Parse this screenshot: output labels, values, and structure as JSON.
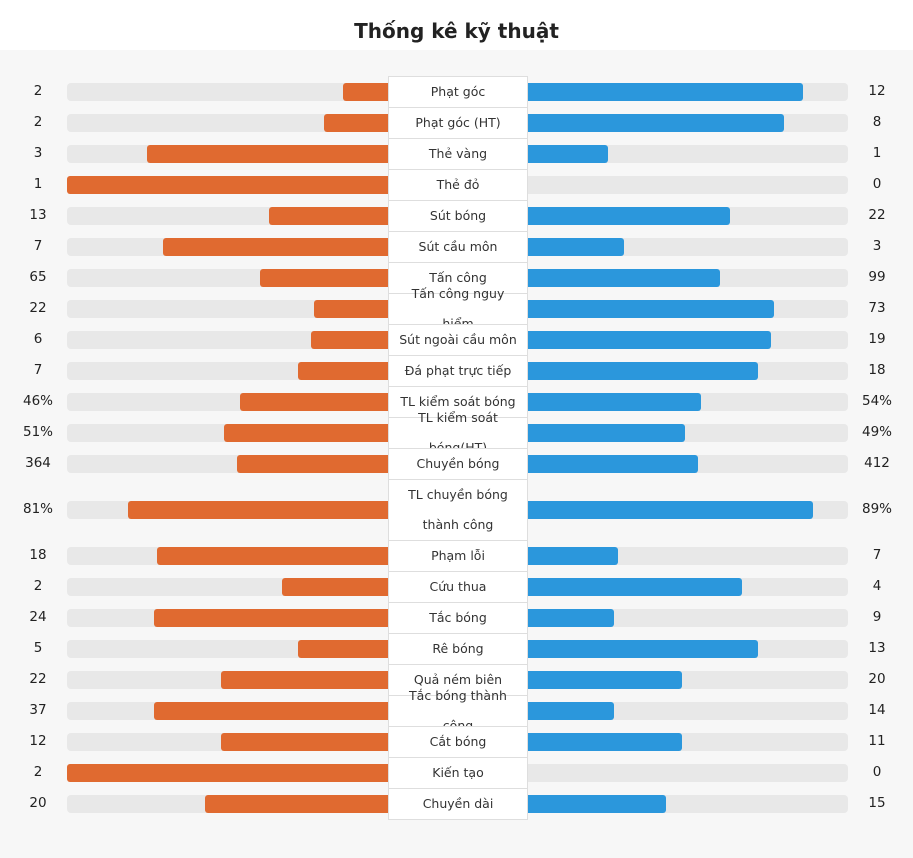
{
  "title": "Thống kê kỹ thuật",
  "colors": {
    "home": "#e06a30",
    "away": "#2b97dc",
    "track": "#e8e8e8"
  },
  "chart_data": {
    "type": "bar",
    "orientation": "horizontal-diverging",
    "title": "Thống kê kỹ thuật",
    "series": [
      {
        "name": "",
        "side": "left"
      },
      {
        "name": "",
        "side": "right"
      }
    ],
    "rows": [
      {
        "label": "Phạt góc",
        "left": "2",
        "right": "12",
        "left_ratio": 0.14,
        "right_ratio": 0.86
      },
      {
        "label": "Phạt góc (HT)",
        "left": "2",
        "right": "8",
        "left_ratio": 0.2,
        "right_ratio": 0.8
      },
      {
        "label": "Thẻ vàng",
        "left": "3",
        "right": "1",
        "left_ratio": 0.75,
        "right_ratio": 0.25
      },
      {
        "label": "Thẻ đỏ",
        "left": "1",
        "right": "0",
        "left_ratio": 1.0,
        "right_ratio": 0.0
      },
      {
        "label": "Sút bóng",
        "left": "13",
        "right": "22",
        "left_ratio": 0.37,
        "right_ratio": 0.63
      },
      {
        "label": "Sút cầu môn",
        "left": "7",
        "right": "3",
        "left_ratio": 0.7,
        "right_ratio": 0.3
      },
      {
        "label": "Tấn công",
        "left": "65",
        "right": "99",
        "left_ratio": 0.4,
        "right_ratio": 0.6
      },
      {
        "label": "Tấn công nguy hiểm",
        "left": "22",
        "right": "73",
        "left_ratio": 0.23,
        "right_ratio": 0.77
      },
      {
        "label": "Sút ngoài cầu môn",
        "left": "6",
        "right": "19",
        "left_ratio": 0.24,
        "right_ratio": 0.76
      },
      {
        "label": "Đá phạt trực tiếp",
        "left": "7",
        "right": "18",
        "left_ratio": 0.28,
        "right_ratio": 0.72
      },
      {
        "label": "TL kiểm soát bóng",
        "left": "46%",
        "right": "54%",
        "left_ratio": 0.46,
        "right_ratio": 0.54
      },
      {
        "label": "TL kiểm soát bóng(HT)",
        "left": "51%",
        "right": "49%",
        "left_ratio": 0.51,
        "right_ratio": 0.49
      },
      {
        "label": "Chuyền bóng",
        "left": "364",
        "right": "412",
        "left_ratio": 0.47,
        "right_ratio": 0.53
      },
      {
        "label": "TL chuyền bóng thành công",
        "left": "81%",
        "right": "89%",
        "left_ratio": 0.81,
        "right_ratio": 0.89,
        "tall": true
      },
      {
        "label": "Phạm lỗi",
        "left": "18",
        "right": "7",
        "left_ratio": 0.72,
        "right_ratio": 0.28
      },
      {
        "label": "Cứu thua",
        "left": "2",
        "right": "4",
        "left_ratio": 0.33,
        "right_ratio": 0.67
      },
      {
        "label": "Tắc bóng",
        "left": "24",
        "right": "9",
        "left_ratio": 0.73,
        "right_ratio": 0.27
      },
      {
        "label": "Rê bóng",
        "left": "5",
        "right": "13",
        "left_ratio": 0.28,
        "right_ratio": 0.72
      },
      {
        "label": "Quả ném biên",
        "left": "22",
        "right": "20",
        "left_ratio": 0.52,
        "right_ratio": 0.48
      },
      {
        "label": "Tắc bóng thành công",
        "left": "37",
        "right": "14",
        "left_ratio": 0.73,
        "right_ratio": 0.27
      },
      {
        "label": "Cắt bóng",
        "left": "12",
        "right": "11",
        "left_ratio": 0.52,
        "right_ratio": 0.48
      },
      {
        "label": "Kiến tạo",
        "left": "2",
        "right": "0",
        "left_ratio": 1.0,
        "right_ratio": 0.0
      },
      {
        "label": "Chuyền dài",
        "left": "20",
        "right": "15",
        "left_ratio": 0.57,
        "right_ratio": 0.43
      }
    ]
  }
}
